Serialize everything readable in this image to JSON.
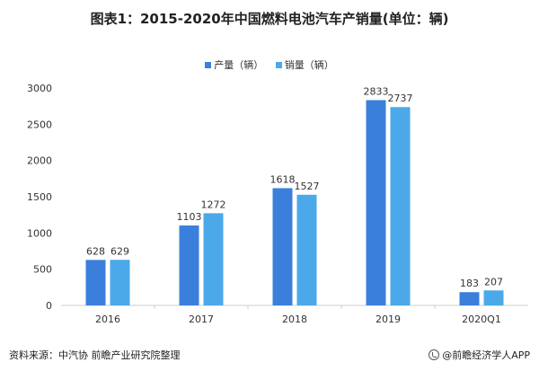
{
  "title": "图表1：2015-2020年中国燃料电池汽车产销量(单位：辆)",
  "source": "资料来源：中汽协 前瞻产业研究院整理",
  "brand": "@前瞻经济学人APP",
  "colors": {
    "production": "#3b7fdc",
    "sales": "#4ba9ea",
    "axis": "#cccccc",
    "text": "#333333"
  },
  "chart_data": {
    "type": "bar",
    "categories": [
      "2016",
      "2017",
      "2018",
      "2019",
      "2020Q1"
    ],
    "series": [
      {
        "name": "产量（辆）",
        "values": [
          628,
          1103,
          1618,
          2833,
          183
        ]
      },
      {
        "name": "销量（辆）",
        "values": [
          629,
          1272,
          1527,
          2737,
          207
        ]
      }
    ],
    "ylim": [
      0,
      3000
    ],
    "yticks": [
      0,
      500,
      1000,
      1500,
      2000,
      2500,
      3000
    ],
    "grid": false,
    "legend_position": "top-center"
  }
}
